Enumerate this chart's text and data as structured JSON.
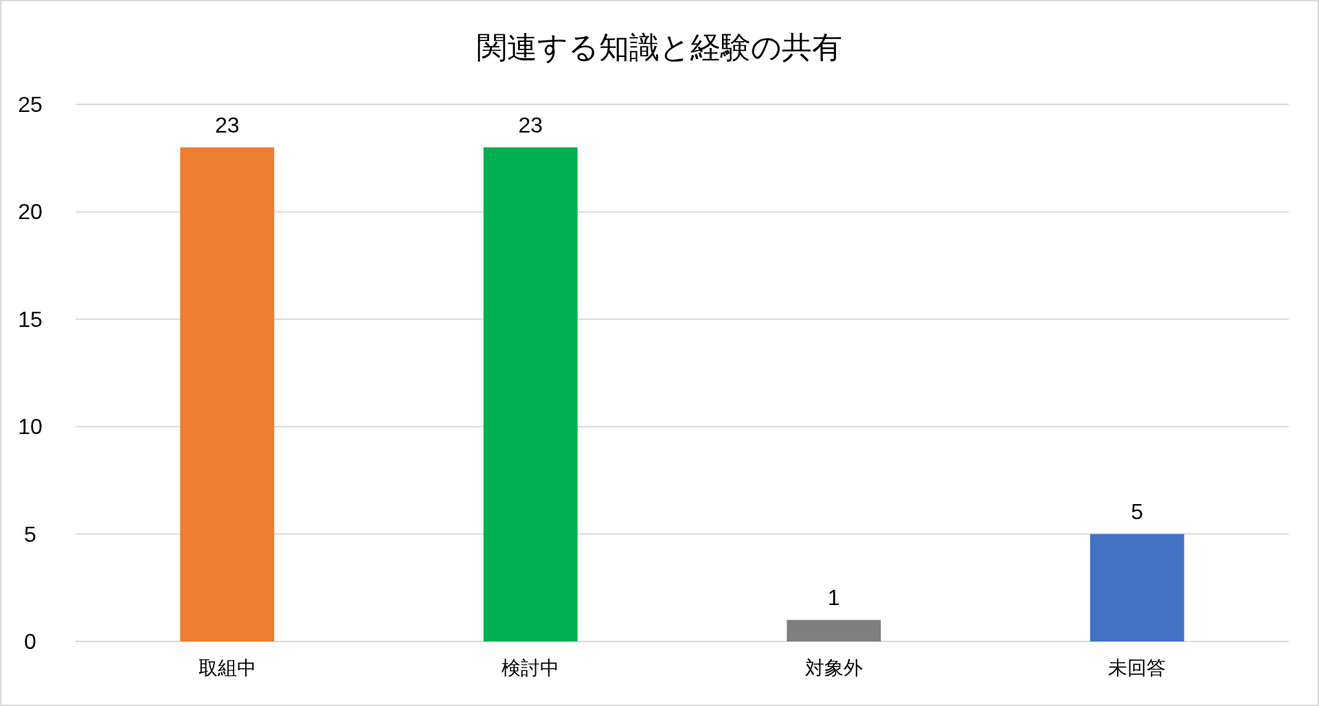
{
  "chart_data": {
    "type": "bar",
    "title": "関連する知識と経験の共有",
    "categories": [
      "取組中",
      "検討中",
      "対象外",
      "未回答"
    ],
    "values": [
      23,
      23,
      1,
      5
    ],
    "colors": [
      "#ed7d31",
      "#00b050",
      "#7f7f7f",
      "#4472c4"
    ],
    "ylim": [
      0,
      25
    ],
    "yticks": [
      0,
      5,
      10,
      15,
      20,
      25
    ],
    "grid": "y",
    "data_labels": true
  }
}
